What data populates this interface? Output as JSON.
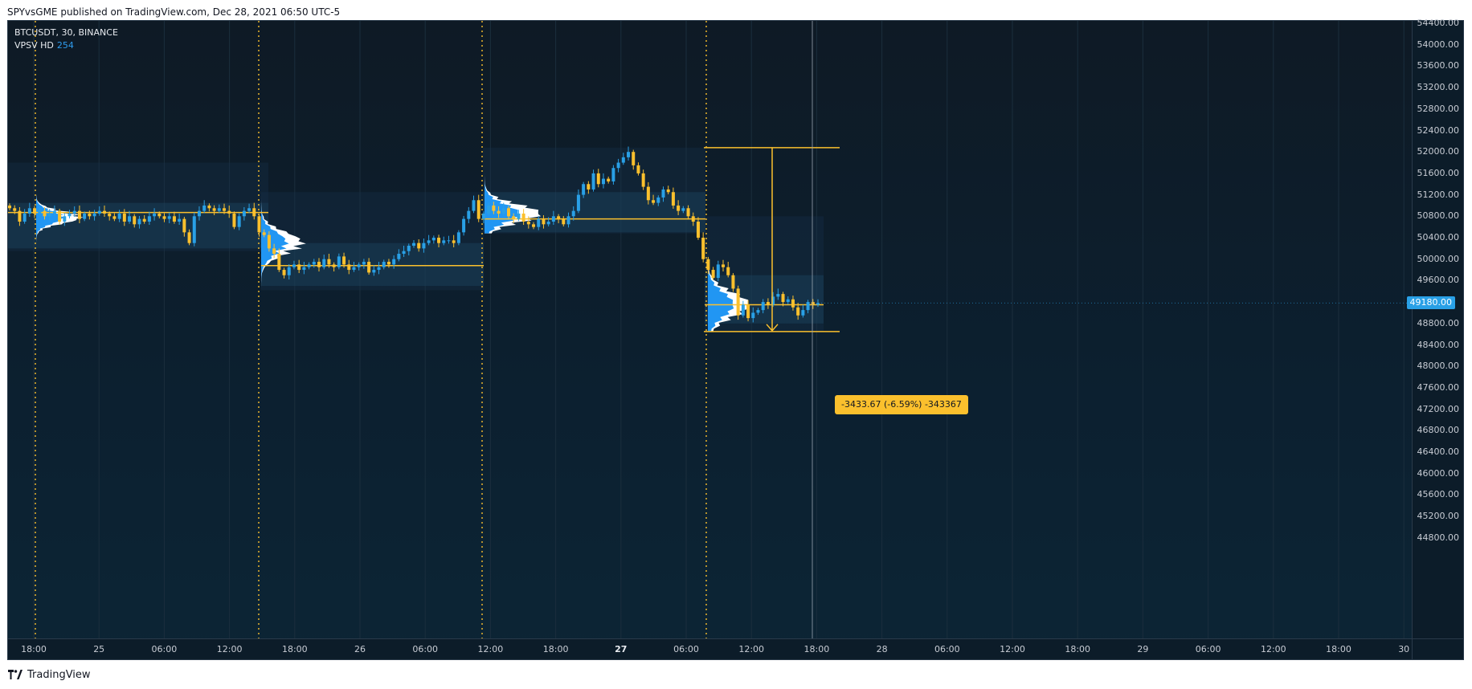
{
  "header": {
    "text": "SPYvsGME published on TradingView.com, Dec 28, 2021 06:50 UTC-5"
  },
  "legend": {
    "symbol": "BTCUSDT, 30, BINANCE",
    "indicator": "VPSV HD",
    "indicator_value": "254"
  },
  "price_scale": [
    "54400.00",
    "54000.00",
    "53600.00",
    "53200.00",
    "52800.00",
    "52400.00",
    "52000.00",
    "51600.00",
    "51200.00",
    "50800.00",
    "50400.00",
    "50000.00",
    "49600.00",
    "49180.00",
    "48800.00",
    "48400.00",
    "48000.00",
    "47600.00",
    "47200.00",
    "46800.00",
    "46400.00",
    "46000.00",
    "45600.00",
    "45200.00",
    "44800.00"
  ],
  "current_price": "49180.00",
  "time_scale": [
    {
      "label": "18:00",
      "bold": false
    },
    {
      "label": "25",
      "bold": false
    },
    {
      "label": "06:00",
      "bold": false
    },
    {
      "label": "12:00",
      "bold": false
    },
    {
      "label": "18:00",
      "bold": false
    },
    {
      "label": "26",
      "bold": false
    },
    {
      "label": "06:00",
      "bold": false
    },
    {
      "label": "12:00",
      "bold": false
    },
    {
      "label": "18:00",
      "bold": false
    },
    {
      "label": "27",
      "bold": true
    },
    {
      "label": "06:00",
      "bold": false
    },
    {
      "label": "12:00",
      "bold": false
    },
    {
      "label": "18:00",
      "bold": false
    },
    {
      "label": "28",
      "bold": false
    },
    {
      "label": "06:00",
      "bold": false
    },
    {
      "label": "12:00",
      "bold": false
    },
    {
      "label": "18:00",
      "bold": false
    },
    {
      "label": "29",
      "bold": false
    },
    {
      "label": "06:00",
      "bold": false
    },
    {
      "label": "12:00",
      "bold": false
    },
    {
      "label": "18:00",
      "bold": false
    },
    {
      "label": "30",
      "bold": false
    }
  ],
  "measure": {
    "label": "-3433.67 (-6.59%) -343367",
    "high": 52080,
    "low": 48650
  },
  "footer": {
    "brand": "TradingView"
  },
  "colors": {
    "up": "#29a0e6",
    "down": "#fbc02d",
    "poc": "#fbc02d",
    "profile_up": "#2196f3",
    "profile_down": "#ffffff",
    "session_line": "#fbc02d"
  },
  "chart_data": {
    "type": "candlestick",
    "symbol": "BTCUSDT",
    "interval": "30",
    "exchange": "BINANCE",
    "ylim": [
      44600,
      54600
    ],
    "sessions": [
      {
        "start_day": "24 18:00",
        "poc": 50870,
        "va_high": 51050,
        "va_low": 50200,
        "range_high": 51800,
        "range_low": 50150
      },
      {
        "start_day": "25 18:00",
        "poc": 49880,
        "va_high": 50300,
        "va_low": 49500,
        "range_high": 51250,
        "range_low": 49420
      },
      {
        "start_day": "26 18:00",
        "poc": 50750,
        "va_high": 51250,
        "va_low": 50500,
        "range_high": 52080,
        "range_low": 50480
      },
      {
        "start_day": "27 18:00",
        "poc": 49150,
        "va_high": 49700,
        "va_low": 48800,
        "range_high": 50800,
        "range_low": 48650
      }
    ],
    "closes": [
      50950,
      50900,
      50700,
      50850,
      50950,
      50850,
      50900,
      50800,
      50850,
      50900,
      50700,
      50800,
      50850,
      50900,
      50750,
      50850,
      50800,
      50850,
      50900,
      50850,
      50800,
      50750,
      50850,
      50700,
      50800,
      50650,
      50750,
      50700,
      50800,
      50850,
      50800,
      50750,
      50800,
      50700,
      50750,
      50500,
      50300,
      50800,
      50900,
      51000,
      50950,
      50900,
      50950,
      50900,
      50850,
      50600,
      50800,
      50900,
      50950,
      50800,
      50500,
      50450,
      50200,
      50100,
      49800,
      49700,
      49850,
      49900,
      49800,
      49850,
      49900,
      49950,
      49850,
      50000,
      49900,
      49850,
      50050,
      49900,
      49800,
      49850,
      49900,
      49950,
      49750,
      49800,
      49850,
      49950,
      49900,
      50000,
      50100,
      50150,
      50250,
      50300,
      50200,
      50300,
      50350,
      50400,
      50300,
      50350,
      50350,
      50300,
      50500,
      50750,
      50900,
      51100,
      50750,
      50850,
      51000,
      50900,
      50850,
      50950,
      50800,
      50750,
      50850,
      50700,
      50650,
      50600,
      50750,
      50650,
      50700,
      50800,
      50750,
      50650,
      50800,
      50900,
      51200,
      51400,
      51300,
      51600,
      51400,
      51500,
      51450,
      51700,
      51800,
      51900,
      52000,
      51750,
      51600,
      51350,
      51100,
      51050,
      51150,
      51300,
      51250,
      51000,
      50900,
      50950,
      50800,
      50700,
      50400,
      50000,
      49800,
      49650,
      49900,
      49850,
      49700,
      49450,
      48950,
      49150,
      48900,
      49000,
      49050,
      49200,
      49150,
      49300,
      49350,
      49200,
      49250,
      49100,
      48950,
      49050,
      49200,
      49150,
      49180
    ]
  }
}
